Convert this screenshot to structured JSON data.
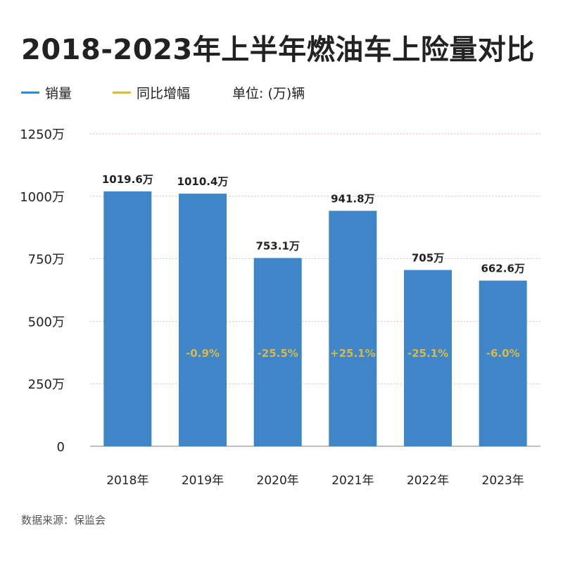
{
  "title": "2018-2023年上半年燃油车上险量对比",
  "legend": {
    "items": [
      {
        "label": "销量",
        "color": "#3f86c8"
      },
      {
        "label": "同比增幅",
        "color": "#d6b94a"
      }
    ],
    "unit": "单位: (万)辆"
  },
  "source": "数据来源：保监会",
  "chart_data": {
    "type": "bar",
    "title": "2018-2023年上半年燃油车上险量对比",
    "xlabel": "",
    "ylabel": "",
    "categories": [
      "2018年",
      "2019年",
      "2020年",
      "2021年",
      "2022年",
      "2023年"
    ],
    "series": [
      {
        "name": "销量",
        "values": [
          1019.6,
          1010.4,
          753.1,
          941.8,
          705,
          662.6
        ],
        "labels": [
          "1019.6万",
          "1010.4万",
          "753.1万",
          "941.8万",
          "705万",
          "662.6万"
        ]
      },
      {
        "name": "同比增幅",
        "labels": [
          "",
          "-0.9%",
          "-25.5%",
          "+25.1%",
          "-25.1%",
          "-6.0%"
        ]
      }
    ],
    "ylim": [
      0,
      1250
    ],
    "yticks": [
      0,
      250,
      500,
      750,
      1000,
      1250
    ],
    "ytick_labels": [
      "0",
      "250万",
      "500万",
      "750万",
      "1000万",
      "1250万"
    ],
    "bar_color": "#3f86c8",
    "growth_color": "#d6b94a",
    "grid": true
  }
}
